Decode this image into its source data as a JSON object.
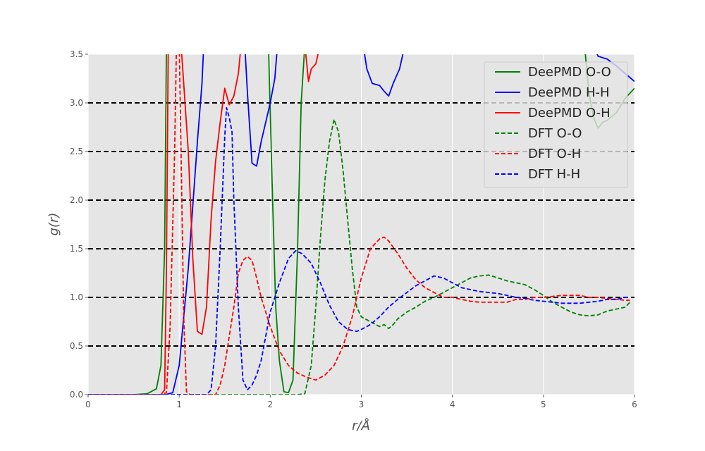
{
  "chart_data": {
    "type": "line",
    "title": "",
    "xlabel": "r/Å",
    "ylabel": "g(r)",
    "xlim": [
      0,
      6
    ],
    "ylim": [
      0,
      3.5
    ],
    "xticks": [
      0,
      1,
      2,
      3,
      4,
      5,
      6
    ],
    "xtick_labels": [
      "0",
      "1",
      "2",
      "3",
      "4",
      "5",
      "6"
    ],
    "yticks": [
      0,
      0.5,
      1.0,
      1.5,
      2.0,
      2.5,
      3.0,
      3.5
    ],
    "ytick_labels": [
      "0.0",
      "0.5",
      "1.0",
      "1.5",
      "2.0",
      "2.5",
      "3.0",
      "3.5"
    ],
    "hlines": [
      0.5,
      1.0,
      1.5,
      2.0,
      2.5,
      3.0
    ],
    "legend_position": "top-right",
    "style": "ggplot",
    "series": [
      {
        "name": "DeePMD O-O",
        "color": "#008000",
        "dash": "solid",
        "points": [
          [
            0,
            0
          ],
          [
            0.5,
            0
          ],
          [
            0.65,
            0.01
          ],
          [
            0.75,
            0.06
          ],
          [
            0.8,
            0.3
          ],
          [
            0.84,
            1.5
          ],
          [
            0.86,
            3.6
          ],
          [
            1.8,
            3.6
          ],
          [
            1.98,
            3.6
          ],
          [
            2.02,
            2.2
          ],
          [
            2.06,
            0.9
          ],
          [
            2.1,
            0.35
          ],
          [
            2.15,
            0.03
          ],
          [
            2.2,
            0.02
          ],
          [
            2.25,
            0.15
          ],
          [
            2.3,
            1.5
          ],
          [
            2.34,
            3.0
          ],
          [
            2.38,
            3.6
          ],
          [
            5.45,
            3.6
          ],
          [
            5.5,
            3.1
          ],
          [
            5.55,
            2.85
          ],
          [
            5.6,
            2.74
          ],
          [
            5.65,
            2.8
          ],
          [
            5.7,
            2.82
          ],
          [
            5.8,
            2.9
          ],
          [
            5.9,
            3.05
          ],
          [
            6.0,
            3.15
          ]
        ]
      },
      {
        "name": "DeePMD H-H",
        "color": "#0000ff",
        "dash": "solid",
        "points": [
          [
            0,
            0
          ],
          [
            0.85,
            0
          ],
          [
            0.93,
            0.02
          ],
          [
            1.0,
            0.3
          ],
          [
            1.1,
            1.3
          ],
          [
            1.2,
            2.6
          ],
          [
            1.25,
            3.2
          ],
          [
            1.27,
            3.6
          ],
          [
            1.72,
            3.6
          ],
          [
            1.75,
            3.1
          ],
          [
            1.8,
            2.38
          ],
          [
            1.85,
            2.35
          ],
          [
            1.9,
            2.6
          ],
          [
            1.95,
            2.8
          ],
          [
            2.0,
            3.0
          ],
          [
            2.05,
            3.25
          ],
          [
            2.08,
            3.6
          ],
          [
            3.02,
            3.6
          ],
          [
            3.06,
            3.35
          ],
          [
            3.12,
            3.2
          ],
          [
            3.2,
            3.18
          ],
          [
            3.25,
            3.12
          ],
          [
            3.3,
            3.07
          ],
          [
            3.35,
            3.2
          ],
          [
            3.42,
            3.35
          ],
          [
            3.48,
            3.6
          ],
          [
            5.55,
            3.6
          ],
          [
            5.6,
            3.48
          ],
          [
            5.7,
            3.45
          ],
          [
            5.8,
            3.38
          ],
          [
            5.9,
            3.3
          ],
          [
            6.0,
            3.22
          ]
        ]
      },
      {
        "name": "DeePMD O-H",
        "color": "#ff0000",
        "dash": "solid",
        "points": [
          [
            0,
            0
          ],
          [
            0.8,
            0
          ],
          [
            0.84,
            0.05
          ],
          [
            0.86,
            1.3
          ],
          [
            0.88,
            3.6
          ],
          [
            1.02,
            3.6
          ],
          [
            1.05,
            3.2
          ],
          [
            1.1,
            2.5
          ],
          [
            1.15,
            1.4
          ],
          [
            1.2,
            0.65
          ],
          [
            1.25,
            0.62
          ],
          [
            1.3,
            0.9
          ],
          [
            1.35,
            1.8
          ],
          [
            1.4,
            2.4
          ],
          [
            1.45,
            2.8
          ],
          [
            1.5,
            3.15
          ],
          [
            1.55,
            2.98
          ],
          [
            1.6,
            3.07
          ],
          [
            1.65,
            3.3
          ],
          [
            1.68,
            3.6
          ],
          [
            2.38,
            3.6
          ],
          [
            2.42,
            3.22
          ],
          [
            2.45,
            3.35
          ],
          [
            2.5,
            3.4
          ],
          [
            2.55,
            3.6
          ]
        ]
      },
      {
        "name": "DFT O-O",
        "color": "#008000",
        "dash": "dashed",
        "points": [
          [
            0,
            0
          ],
          [
            2.3,
            0
          ],
          [
            2.38,
            0.01
          ],
          [
            2.45,
            0.3
          ],
          [
            2.5,
            0.9
          ],
          [
            2.55,
            1.6
          ],
          [
            2.6,
            2.2
          ],
          [
            2.65,
            2.6
          ],
          [
            2.7,
            2.83
          ],
          [
            2.75,
            2.7
          ],
          [
            2.8,
            2.3
          ],
          [
            2.85,
            1.8
          ],
          [
            2.9,
            1.3
          ],
          [
            2.95,
            0.9
          ],
          [
            3.0,
            0.8
          ],
          [
            3.1,
            0.75
          ],
          [
            3.2,
            0.7
          ],
          [
            3.25,
            0.72
          ],
          [
            3.3,
            0.68
          ],
          [
            3.35,
            0.72
          ],
          [
            3.4,
            0.78
          ],
          [
            3.5,
            0.85
          ],
          [
            3.6,
            0.9
          ],
          [
            3.7,
            0.96
          ],
          [
            3.8,
            1.0
          ],
          [
            3.9,
            1.05
          ],
          [
            4.0,
            1.1
          ],
          [
            4.1,
            1.15
          ],
          [
            4.2,
            1.2
          ],
          [
            4.3,
            1.22
          ],
          [
            4.4,
            1.23
          ],
          [
            4.5,
            1.2
          ],
          [
            4.6,
            1.17
          ],
          [
            4.7,
            1.15
          ],
          [
            4.8,
            1.13
          ],
          [
            4.9,
            1.08
          ],
          [
            5.0,
            1.02
          ],
          [
            5.1,
            0.95
          ],
          [
            5.2,
            0.9
          ],
          [
            5.3,
            0.85
          ],
          [
            5.4,
            0.82
          ],
          [
            5.5,
            0.81
          ],
          [
            5.6,
            0.82
          ],
          [
            5.7,
            0.86
          ],
          [
            5.8,
            0.88
          ],
          [
            5.9,
            0.9
          ],
          [
            5.95,
            0.95
          ]
        ]
      },
      {
        "name": "DFT O-H",
        "color": "#ff0000",
        "dash": "dashed",
        "points": [
          [
            0,
            0
          ],
          [
            0.8,
            0
          ],
          [
            0.86,
            0.02
          ],
          [
            0.9,
            0.7
          ],
          [
            0.95,
            2.5
          ],
          [
            0.97,
            3.6
          ],
          [
            1.0,
            3.6
          ],
          [
            1.02,
            2.5
          ],
          [
            1.05,
            0.8
          ],
          [
            1.08,
            0.03
          ],
          [
            1.12,
            0
          ],
          [
            1.4,
            0
          ],
          [
            1.45,
            0.1
          ],
          [
            1.5,
            0.3
          ],
          [
            1.55,
            0.6
          ],
          [
            1.6,
            0.9
          ],
          [
            1.65,
            1.25
          ],
          [
            1.7,
            1.38
          ],
          [
            1.75,
            1.42
          ],
          [
            1.8,
            1.38
          ],
          [
            1.85,
            1.2
          ],
          [
            1.9,
            1.0
          ],
          [
            1.95,
            0.85
          ],
          [
            2.0,
            0.7
          ],
          [
            2.1,
            0.45
          ],
          [
            2.2,
            0.3
          ],
          [
            2.3,
            0.22
          ],
          [
            2.4,
            0.18
          ],
          [
            2.5,
            0.15
          ],
          [
            2.6,
            0.2
          ],
          [
            2.7,
            0.3
          ],
          [
            2.8,
            0.5
          ],
          [
            2.9,
            0.8
          ],
          [
            3.0,
            1.2
          ],
          [
            3.1,
            1.5
          ],
          [
            3.2,
            1.6
          ],
          [
            3.25,
            1.62
          ],
          [
            3.3,
            1.58
          ],
          [
            3.4,
            1.45
          ],
          [
            3.5,
            1.3
          ],
          [
            3.6,
            1.18
          ],
          [
            3.7,
            1.1
          ],
          [
            3.8,
            1.05
          ],
          [
            3.9,
            1.0
          ],
          [
            4.0,
            1.0
          ],
          [
            4.1,
            0.98
          ],
          [
            4.2,
            0.96
          ],
          [
            4.3,
            0.95
          ],
          [
            4.4,
            0.95
          ],
          [
            4.5,
            0.95
          ],
          [
            4.6,
            0.95
          ],
          [
            4.7,
            0.98
          ],
          [
            4.8,
            0.98
          ],
          [
            4.9,
            1.0
          ],
          [
            5.0,
            1.0
          ],
          [
            5.1,
            1.01
          ],
          [
            5.2,
            1.02
          ],
          [
            5.3,
            1.02
          ],
          [
            5.4,
            1.02
          ],
          [
            5.5,
            1.0
          ],
          [
            5.6,
            1.0
          ],
          [
            5.7,
            0.99
          ],
          [
            5.8,
            0.98
          ],
          [
            5.9,
            0.97
          ],
          [
            5.95,
            0.97
          ]
        ]
      },
      {
        "name": "DFT H-H",
        "color": "#0000ff",
        "dash": "dashed",
        "points": [
          [
            0,
            0
          ],
          [
            1.3,
            0
          ],
          [
            1.35,
            0.05
          ],
          [
            1.4,
            0.5
          ],
          [
            1.45,
            1.5
          ],
          [
            1.5,
            2.65
          ],
          [
            1.52,
            2.95
          ],
          [
            1.55,
            2.85
          ],
          [
            1.58,
            2.7
          ],
          [
            1.6,
            2.0
          ],
          [
            1.65,
            0.9
          ],
          [
            1.7,
            0.15
          ],
          [
            1.75,
            0.05
          ],
          [
            1.8,
            0.1
          ],
          [
            1.85,
            0.2
          ],
          [
            1.9,
            0.35
          ],
          [
            1.95,
            0.6
          ],
          [
            2.0,
            0.85
          ],
          [
            2.1,
            1.15
          ],
          [
            2.2,
            1.4
          ],
          [
            2.28,
            1.48
          ],
          [
            2.35,
            1.45
          ],
          [
            2.45,
            1.35
          ],
          [
            2.55,
            1.15
          ],
          [
            2.65,
            0.92
          ],
          [
            2.75,
            0.75
          ],
          [
            2.85,
            0.67
          ],
          [
            2.95,
            0.65
          ],
          [
            3.0,
            0.67
          ],
          [
            3.1,
            0.72
          ],
          [
            3.2,
            0.8
          ],
          [
            3.3,
            0.9
          ],
          [
            3.4,
            0.98
          ],
          [
            3.5,
            1.05
          ],
          [
            3.6,
            1.12
          ],
          [
            3.7,
            1.17
          ],
          [
            3.8,
            1.22
          ],
          [
            3.9,
            1.2
          ],
          [
            4.0,
            1.15
          ],
          [
            4.1,
            1.1
          ],
          [
            4.2,
            1.08
          ],
          [
            4.3,
            1.06
          ],
          [
            4.4,
            1.05
          ],
          [
            4.5,
            1.04
          ],
          [
            4.6,
            1.02
          ],
          [
            4.7,
            1.0
          ],
          [
            4.8,
            0.99
          ],
          [
            4.9,
            0.97
          ],
          [
            5.0,
            0.96
          ],
          [
            5.1,
            0.95
          ],
          [
            5.2,
            0.94
          ],
          [
            5.3,
            0.94
          ],
          [
            5.4,
            0.94
          ],
          [
            5.5,
            0.95
          ],
          [
            5.6,
            0.96
          ],
          [
            5.7,
            0.98
          ],
          [
            5.8,
            0.98
          ],
          [
            5.9,
            1.0
          ],
          [
            5.95,
            1.0
          ]
        ]
      }
    ]
  }
}
